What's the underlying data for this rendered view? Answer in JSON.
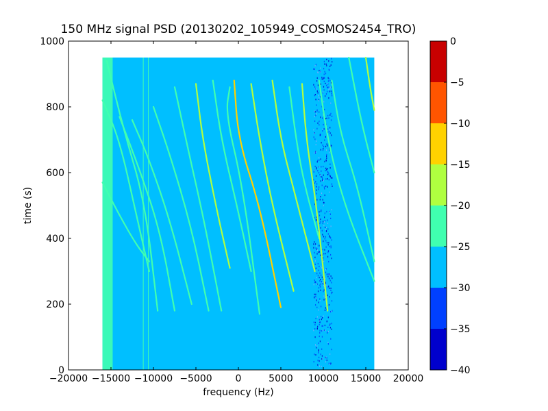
{
  "chart_data": {
    "type": "heatmap",
    "title": "150 MHz signal PSD (20130202_105949_COSMOS2454_TRO)",
    "xlabel": "frequency (Hz)",
    "ylabel": "time (s)",
    "xlim": [
      -20000,
      20000
    ],
    "ylim": [
      0,
      1000
    ],
    "x_ticks": [
      -20000,
      -15000,
      -10000,
      -5000,
      0,
      5000,
      10000,
      15000,
      20000
    ],
    "x_tick_labels": [
      "−20000",
      "−15000",
      "−10000",
      "−5000",
      "0",
      "5000",
      "10000",
      "15000",
      "20000"
    ],
    "y_ticks": [
      0,
      200,
      400,
      600,
      800,
      1000
    ],
    "y_tick_labels": [
      "0",
      "200",
      "400",
      "600",
      "800",
      "1000"
    ],
    "data_extent": {
      "x": [
        -16000,
        16000
      ],
      "y": [
        0,
        950
      ]
    },
    "background_level": -27.5,
    "colorbar": {
      "range": [
        -40,
        0
      ],
      "ticks": [
        0,
        -5,
        -10,
        -15,
        -20,
        -25,
        -30,
        -35,
        -40
      ],
      "tick_labels": [
        "0",
        "−5",
        "−10",
        "−15",
        "−20",
        "−25",
        "−30",
        "−35",
        "−40"
      ],
      "levels": [
        {
          "from": -40,
          "to": -35,
          "color": "#0000cd"
        },
        {
          "from": -35,
          "to": -30,
          "color": "#0040ff"
        },
        {
          "from": -30,
          "to": -25,
          "color": "#00bfff"
        },
        {
          "from": -25,
          "to": -20,
          "color": "#40ffb0"
        },
        {
          "from": -20,
          "to": -15,
          "color": "#b0ff40"
        },
        {
          "from": -15,
          "to": -10,
          "color": "#ffd200"
        },
        {
          "from": -10,
          "to": -5,
          "color": "#ff5500"
        },
        {
          "from": -5,
          "to": 0,
          "color": "#c80000"
        }
      ]
    },
    "vertical_bands": [
      {
        "x_from": -16000,
        "x_to": -14800,
        "level": -22.5
      },
      {
        "x_from": 8800,
        "x_to": 11000,
        "level": -37.5,
        "style": "noise"
      }
    ],
    "vertical_lines": [
      {
        "x": -11200,
        "level": -22.5
      },
      {
        "x": -10600,
        "level": -22.5
      }
    ],
    "traces": [
      {
        "level": -22.5,
        "points": [
          [
            -16000,
            820
          ],
          [
            -14000,
            700
          ],
          [
            -12000,
            470
          ],
          [
            -10500,
            300
          ]
        ]
      },
      {
        "level": -22.5,
        "points": [
          [
            -16000,
            570
          ],
          [
            -14000,
            470
          ],
          [
            -12000,
            380
          ],
          [
            -10500,
            330
          ]
        ]
      },
      {
        "level": -22.5,
        "points": [
          [
            -15500,
            940
          ],
          [
            -13500,
            730
          ],
          [
            -11000,
            510
          ],
          [
            -9500,
            180
          ]
        ]
      },
      {
        "level": -22.5,
        "points": [
          [
            -14000,
            770
          ],
          [
            -11500,
            600
          ],
          [
            -9200,
            420
          ],
          [
            -7500,
            180
          ]
        ]
      },
      {
        "level": -22.5,
        "points": [
          [
            -12500,
            760
          ],
          [
            -10500,
            640
          ],
          [
            -8000,
            450
          ],
          [
            -5500,
            200
          ]
        ]
      },
      {
        "level": -22.5,
        "points": [
          [
            -10000,
            800
          ],
          [
            -8000,
            650
          ],
          [
            -5500,
            430
          ],
          [
            -3500,
            180
          ]
        ]
      },
      {
        "level": -22.5,
        "points": [
          [
            -7500,
            860
          ],
          [
            -6000,
            680
          ],
          [
            -4000,
            450
          ],
          [
            -2000,
            180
          ]
        ]
      },
      {
        "level": -17.5,
        "points": [
          [
            -5000,
            870
          ],
          [
            -4200,
            700
          ],
          [
            -2500,
            480
          ],
          [
            -1000,
            310
          ]
        ]
      },
      {
        "level": -22.5,
        "points": [
          [
            -1000,
            860
          ],
          [
            -1500,
            780
          ],
          [
            500,
            560
          ],
          [
            2500,
            170
          ]
        ]
      },
      {
        "level": -22.5,
        "points": [
          [
            -3000,
            880
          ],
          [
            -2000,
            700
          ],
          [
            0,
            480
          ],
          [
            1500,
            300
          ]
        ]
      },
      {
        "level": -12.5,
        "points": [
          [
            -500,
            880
          ],
          [
            0,
            700
          ],
          [
            2500,
            500
          ],
          [
            5000,
            190
          ]
        ]
      },
      {
        "level": -17.5,
        "points": [
          [
            1500,
            870
          ],
          [
            2500,
            700
          ],
          [
            4000,
            500
          ],
          [
            6500,
            240
          ]
        ]
      },
      {
        "level": -17.5,
        "points": [
          [
            4000,
            880
          ],
          [
            5000,
            700
          ],
          [
            6500,
            550
          ],
          [
            9000,
            300
          ]
        ]
      },
      {
        "level": -22.5,
        "points": [
          [
            6000,
            860
          ],
          [
            6800,
            700
          ],
          [
            7800,
            560
          ],
          [
            9500,
            400
          ]
        ]
      },
      {
        "level": -17.5,
        "points": [
          [
            7500,
            870
          ],
          [
            8000,
            700
          ],
          [
            9200,
            500
          ],
          [
            10500,
            180
          ]
        ]
      },
      {
        "level": -22.5,
        "points": [
          [
            9500,
            880
          ],
          [
            10500,
            700
          ],
          [
            12500,
            500
          ],
          [
            16000,
            270
          ]
        ]
      },
      {
        "level": -22.5,
        "points": [
          [
            11000,
            880
          ],
          [
            12000,
            720
          ],
          [
            14000,
            560
          ],
          [
            16000,
            330
          ]
        ]
      },
      {
        "level": -22.5,
        "points": [
          [
            13000,
            950
          ],
          [
            14500,
            750
          ],
          [
            16000,
            600
          ]
        ]
      },
      {
        "level": -17.5,
        "points": [
          [
            15000,
            950
          ],
          [
            15500,
            860
          ],
          [
            16000,
            790
          ]
        ]
      }
    ]
  }
}
